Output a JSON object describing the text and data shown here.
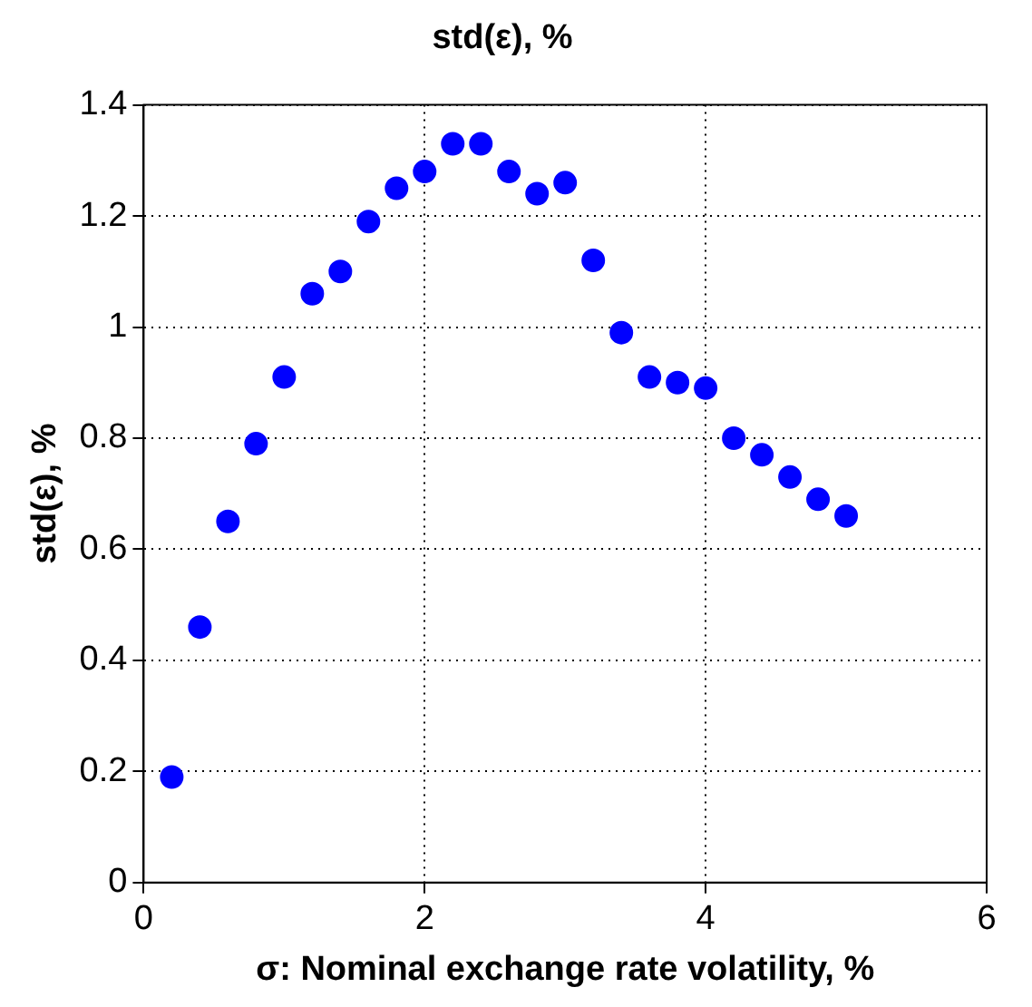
{
  "chart_data": {
    "type": "scatter",
    "title": "std(ε), %",
    "xlabel": "σ: Nominal exchange rate volatility, %",
    "ylabel": "std(ε), %",
    "x": [
      0.2,
      0.4,
      0.6,
      0.8,
      1.0,
      1.2,
      1.4,
      1.6,
      1.8,
      2.0,
      2.2,
      2.4,
      2.6,
      2.8,
      3.0,
      3.2,
      3.4,
      3.6,
      3.8,
      4.0,
      4.2,
      4.4,
      4.6,
      4.8,
      5.0
    ],
    "series": [
      {
        "color": "#0000ff",
        "values": [
          0.19,
          0.46,
          0.65,
          0.79,
          0.91,
          1.06,
          1.1,
          1.19,
          1.25,
          1.28,
          1.33,
          1.33,
          1.28,
          1.24,
          1.26,
          1.12,
          0.99,
          0.91,
          0.9,
          0.89,
          0.8,
          0.77,
          0.73,
          0.69,
          0.66
        ]
      }
    ],
    "xlim": [
      0,
      6
    ],
    "xticks": [
      0,
      2,
      4,
      6
    ],
    "ylim": [
      0,
      1.4
    ],
    "yticks": [
      0,
      0.2,
      0.4,
      0.6,
      0.8,
      1,
      1.2,
      1.4
    ],
    "grid": true,
    "marker": "circle"
  }
}
